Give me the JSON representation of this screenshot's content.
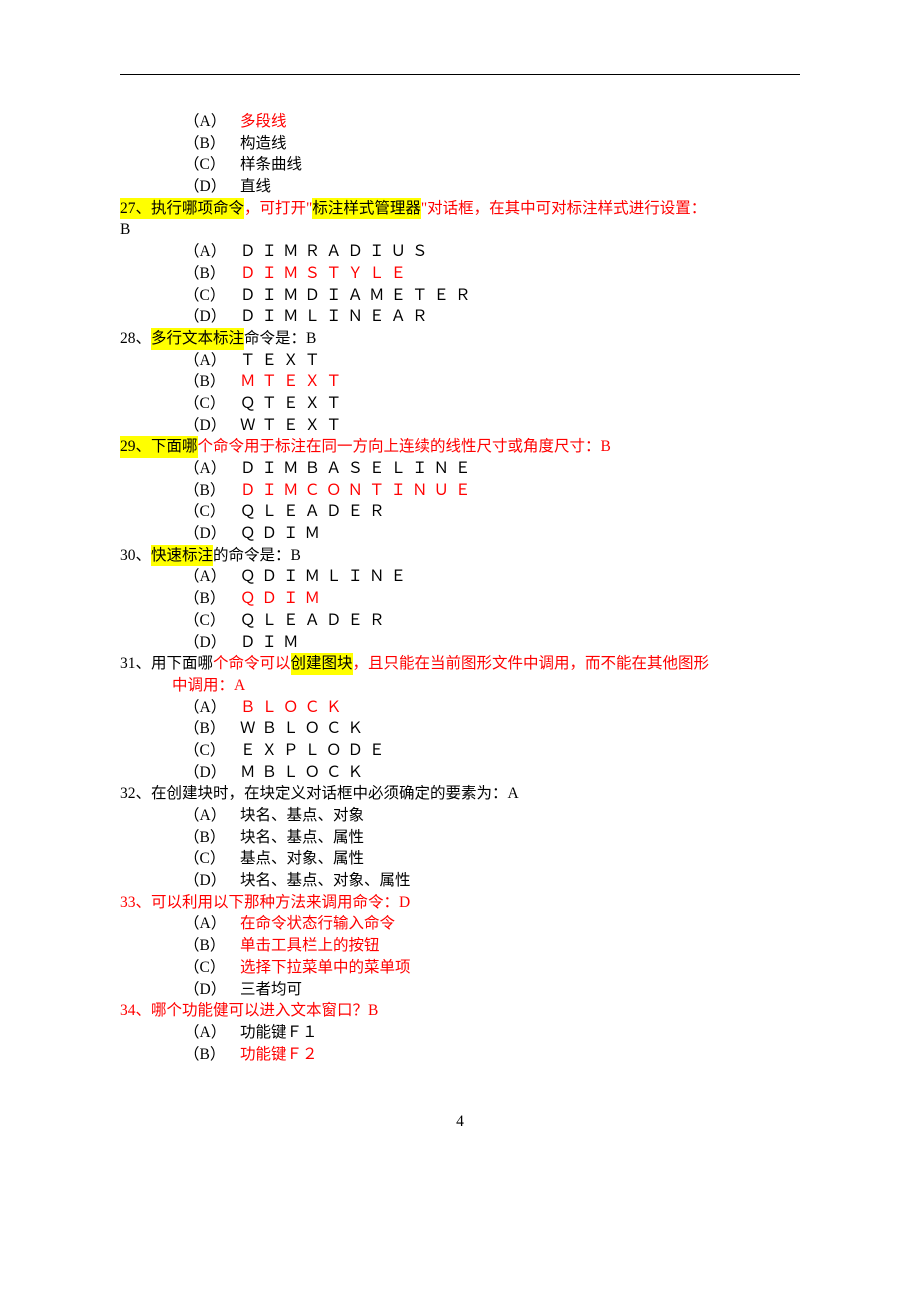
{
  "colors": {
    "text_black": "#000000",
    "text_red": "#ff0000",
    "highlight_yellow": "#ffff00",
    "background": "#ffffff"
  },
  "typography": {
    "body_fontsize_pt": 12,
    "line_height": 1.4,
    "font_family": "SimSun"
  },
  "page_number": "4",
  "pre_options": [
    {
      "letter": "（A）",
      "text": "多段线",
      "red": true
    },
    {
      "letter": "（B）",
      "text": "构造线",
      "red": false
    },
    {
      "letter": "（C）",
      "text": "样条曲线",
      "red": false
    },
    {
      "letter": "（D）",
      "text": "直线",
      "red": false
    }
  ],
  "questions": [
    {
      "num": "27",
      "stem_parts": [
        {
          "t": "27、执行哪项命令",
          "hl": true,
          "red": false,
          "spaced": false
        },
        {
          "t": "，可打开\"",
          "hl": false,
          "red": true,
          "spaced": false
        },
        {
          "t": "标注样式管理器",
          "hl": true,
          "red": false,
          "spaced": false
        },
        {
          "t": "\"对话框，在其中可对标注样式进行设置：",
          "hl": false,
          "red": true,
          "spaced": false
        }
      ],
      "trailing": "B",
      "trailing_newline": true,
      "options": [
        {
          "letter": "（A）",
          "text": "ＤＩＭＲＡＤＩＵＳ",
          "red": false,
          "spaced": true
        },
        {
          "letter": "（B）",
          "text": "ＤＩＭＳＴＹＬＥ",
          "red": true,
          "spaced": true
        },
        {
          "letter": "（C）",
          "text": "ＤＩＭＤＩＡＭＥＴＥＲ",
          "red": false,
          "spaced": true
        },
        {
          "letter": "（D）",
          "text": "ＤＩＭＬＩＮＥＡＲ",
          "red": false,
          "spaced": true
        }
      ]
    },
    {
      "num": "28",
      "stem_parts": [
        {
          "t": "28、",
          "hl": false,
          "red": false,
          "spaced": false
        },
        {
          "t": "多行文本标注",
          "hl": true,
          "red": false,
          "spaced": false
        },
        {
          "t": "命令是：B",
          "hl": false,
          "red": false,
          "spaced": false
        }
      ],
      "options": [
        {
          "letter": "（A）",
          "text": "ＴＥＸＴ",
          "red": false,
          "spaced": true
        },
        {
          "letter": "（B）",
          "text": "ＭＴＥＸＴ",
          "red": true,
          "spaced": true
        },
        {
          "letter": "（C）",
          "text": "ＱＴＥＸＴ",
          "red": false,
          "spaced": true
        },
        {
          "letter": "（D）",
          "text": "ＷＴＥＸＴ",
          "red": false,
          "spaced": true
        }
      ]
    },
    {
      "num": "29",
      "stem_parts": [
        {
          "t": "29、下面哪",
          "hl": true,
          "red": false,
          "spaced": false
        },
        {
          "t": "个命令用于标注在同一方向上连续的线性尺寸或角度尺寸：B",
          "hl": false,
          "red": true,
          "spaced": false
        }
      ],
      "options": [
        {
          "letter": "（A）",
          "text": "ＤＩＭＢＡＳＥＬＩＮＥ",
          "red": false,
          "spaced": true
        },
        {
          "letter": "（B）",
          "text": "ＤＩＭＣＯＮＴＩＮＵＥ",
          "red": true,
          "spaced": true
        },
        {
          "letter": "（C）",
          "text": "ＱＬＥＡＤＥＲ",
          "red": false,
          "spaced": true
        },
        {
          "letter": "（D）",
          "text": "ＱＤＩＭ",
          "red": false,
          "spaced": true
        }
      ]
    },
    {
      "num": "30",
      "stem_parts": [
        {
          "t": "30、",
          "hl": false,
          "red": false,
          "spaced": false
        },
        {
          "t": "快速标注",
          "hl": true,
          "red": false,
          "spaced": false
        },
        {
          "t": "的命令是：B",
          "hl": false,
          "red": false,
          "spaced": false
        }
      ],
      "options": [
        {
          "letter": "（A）",
          "text": "ＱＤＩＭＬＩＮＥ",
          "red": false,
          "spaced": true
        },
        {
          "letter": "（B）",
          "text": "ＱＤＩＭ",
          "red": true,
          "spaced": true
        },
        {
          "letter": "（C）",
          "text": "ＱＬＥＡＤＥＲ",
          "red": false,
          "spaced": true
        },
        {
          "letter": "（D）",
          "text": "ＤＩＭ",
          "red": false,
          "spaced": true
        }
      ]
    },
    {
      "num": "31",
      "stem_parts": [
        {
          "t": "31、用下面哪",
          "hl": false,
          "red": false,
          "spaced": false
        },
        {
          "t": "个命令可以",
          "hl": false,
          "red": true,
          "spaced": false
        },
        {
          "t": "创建图块",
          "hl": true,
          "red": false,
          "spaced": false
        },
        {
          "t": "，且只能在当前图形文件中调用，而不能在其他图形",
          "hl": false,
          "red": true,
          "spaced": false
        }
      ],
      "stem_continue": [
        {
          "t": "中调用：A",
          "hl": false,
          "red": true,
          "spaced": false
        }
      ],
      "options": [
        {
          "letter": "（A）",
          "text": "ＢＬＯＣＫ",
          "red": true,
          "spaced": true
        },
        {
          "letter": "（B）",
          "text": "ＷＢＬＯＣＫ",
          "red": false,
          "spaced": true
        },
        {
          "letter": "（C）",
          "text": "ＥＸＰＬＯＤＥ",
          "red": false,
          "spaced": true
        },
        {
          "letter": "（D）",
          "text": "ＭＢＬＯＣＫ",
          "red": false,
          "spaced": true
        }
      ]
    },
    {
      "num": "32",
      "stem_parts": [
        {
          "t": "32、在创建块时，在块定义对话框中必须确定的要素为：A",
          "hl": false,
          "red": false,
          "spaced": false
        }
      ],
      "options": [
        {
          "letter": "（A）",
          "text": "块名、基点、对象",
          "red": false
        },
        {
          "letter": "（B）",
          "text": "块名、基点、属性",
          "red": false
        },
        {
          "letter": "（C）",
          "text": "基点、对象、属性",
          "red": false
        },
        {
          "letter": "（D）",
          "text": "块名、基点、对象、属性",
          "red": false
        }
      ]
    },
    {
      "num": "33",
      "stem_parts": [
        {
          "t": "33、可以利用以下那种方法来调用命令：D",
          "hl": false,
          "red": true,
          "spaced": false
        }
      ],
      "options": [
        {
          "letter": "（A）",
          "text": "在命令状态行输入命令",
          "red": true
        },
        {
          "letter": "（B）",
          "text": "单击工具栏上的按钮",
          "red": true
        },
        {
          "letter": "（C）",
          "text": "选择下拉菜单中的菜单项",
          "red": true
        },
        {
          "letter": "（D）",
          "text": "三者均可",
          "red": false
        }
      ]
    },
    {
      "num": "34",
      "stem_parts": [
        {
          "t": "34、哪个功能健可以进入文本窗口？B",
          "hl": false,
          "red": true,
          "spaced": false
        }
      ],
      "options": [
        {
          "letter": "（A）",
          "text": "功能键Ｆ１",
          "red": false
        },
        {
          "letter": "（B）",
          "text": "功能键Ｆ２",
          "red": true
        }
      ]
    }
  ]
}
